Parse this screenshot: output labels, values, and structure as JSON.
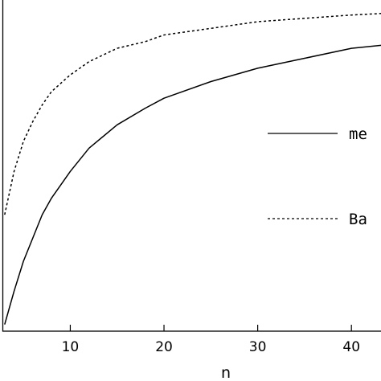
{
  "chart_data": {
    "type": "line",
    "xlabel": "n",
    "ylabel": "",
    "xlim": [
      2.8,
      43.5
    ],
    "ylim": [
      0.0,
      1.0
    ],
    "x_ticks": [
      10,
      20,
      30,
      40
    ],
    "x_tick_labels": [
      "10",
      "20",
      "30",
      "40"
    ],
    "grid": false,
    "legend_position": "right",
    "series": [
      {
        "name": "me",
        "style": "solid",
        "points": [
          [
            3,
            0.02
          ],
          [
            4,
            0.12
          ],
          [
            5,
            0.21
          ],
          [
            6,
            0.28
          ],
          [
            7,
            0.35
          ],
          [
            8,
            0.4
          ],
          [
            10,
            0.48
          ],
          [
            12,
            0.55
          ],
          [
            15,
            0.62
          ],
          [
            18,
            0.67
          ],
          [
            20,
            0.7
          ],
          [
            25,
            0.75
          ],
          [
            30,
            0.79
          ],
          [
            35,
            0.82
          ],
          [
            40,
            0.85
          ],
          [
            43.5,
            0.86
          ]
        ]
      },
      {
        "name": "Ba",
        "style": "dashed",
        "points": [
          [
            3,
            0.35
          ],
          [
            4,
            0.48
          ],
          [
            5,
            0.57
          ],
          [
            6,
            0.63
          ],
          [
            7,
            0.68
          ],
          [
            8,
            0.72
          ],
          [
            10,
            0.77
          ],
          [
            12,
            0.81
          ],
          [
            15,
            0.85
          ],
          [
            18,
            0.87
          ],
          [
            20,
            0.89
          ],
          [
            25,
            0.91
          ],
          [
            30,
            0.93
          ],
          [
            35,
            0.94
          ],
          [
            40,
            0.95
          ],
          [
            43.5,
            0.955
          ]
        ]
      }
    ]
  },
  "colors": {
    "line": "#000000",
    "background": "#ffffff"
  }
}
